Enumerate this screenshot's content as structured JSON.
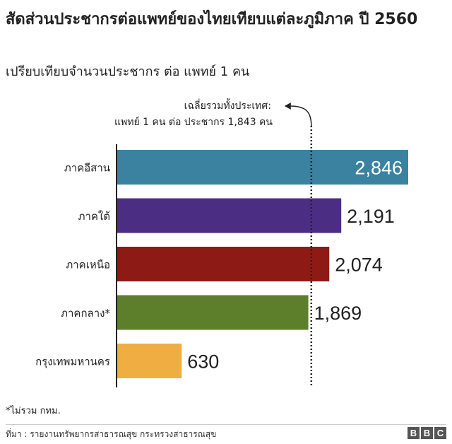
{
  "chart_data": {
    "type": "bar",
    "orientation": "horizontal",
    "title": "สัดส่วนประชากรต่อแพทย์ของไทยเทียบแต่ละภูมิภาค ปี 2560",
    "subtitle": "เปรียบเทียบจำนวนประชากร ต่อ แพทย์ 1 คน",
    "categories": [
      "ภาคอีสาน",
      "ภาคใต้",
      "ภาคเหนือ",
      "ภาคกลาง*",
      "กรุงเทพมหานคร"
    ],
    "values": [
      2846,
      2191,
      2074,
      1869,
      630
    ],
    "value_labels": [
      "2,846",
      "2,191",
      "2,074",
      "1,869",
      "630"
    ],
    "colors": [
      "#3b82a0",
      "#4b2e83",
      "#8e1a15",
      "#5d7f2b",
      "#f0ad41"
    ],
    "xlim": [
      0,
      2846
    ],
    "grid": false,
    "reference_line": {
      "value": 1843,
      "label_line1": "เฉลี่ยรวมทั้งประเทศ:",
      "label_line2": "แพทย์ 1 คน ต่อ ประชากร 1,843 คน"
    }
  },
  "footnote": "*ไม่รวม กทม.",
  "source": "ที่มา :  รายงานทรัพยากรสาธารณสุข กระทรวงสาธารณสุข",
  "brand": [
    "B",
    "B",
    "C"
  ]
}
